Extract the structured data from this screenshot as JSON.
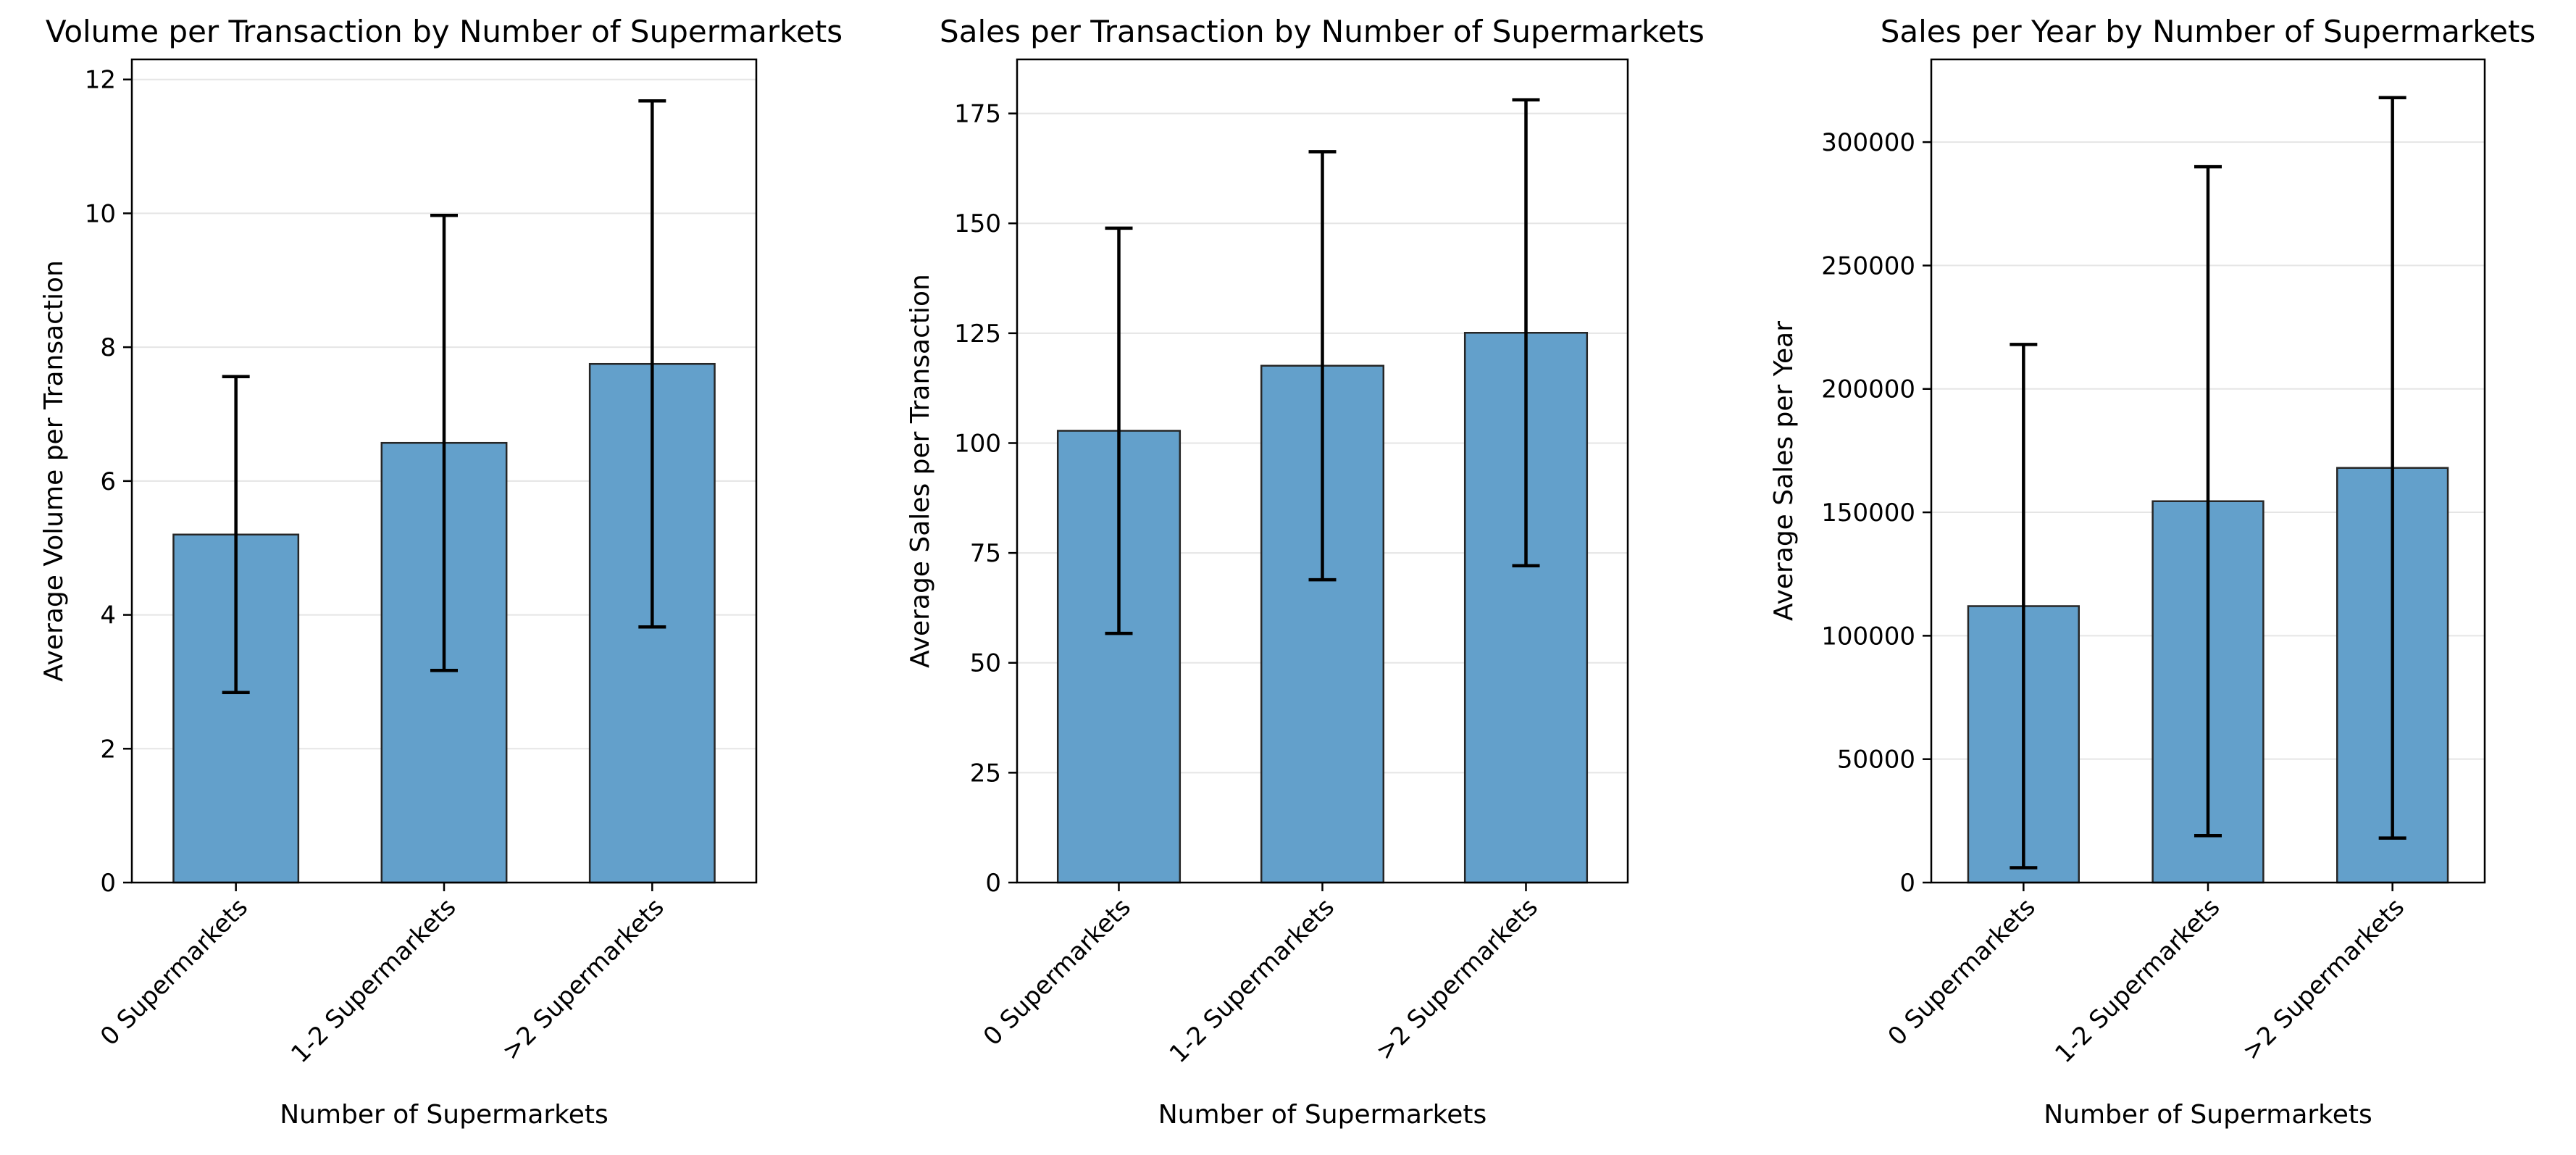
{
  "chart_data": [
    {
      "type": "bar",
      "title": "Volume per Transaction by Number of Supermarkets",
      "xlabel": "Number of Supermarkets",
      "ylabel": "Average Volume per Transaction",
      "categories": [
        "0 Supermarkets",
        "1-2 Supermarkets",
        ">2 Supermarkets"
      ],
      "values": [
        5.2,
        6.57,
        7.75
      ],
      "error": [
        2.36,
        3.4,
        3.93
      ],
      "ylim": [
        0,
        12.3
      ],
      "yticks": [
        0,
        2,
        4,
        6,
        8,
        10,
        12
      ],
      "grid": "y"
    },
    {
      "type": "bar",
      "title": "Sales per Transaction by Number of Supermarkets",
      "xlabel": "Number of Supermarkets",
      "ylabel": "Average Sales per Transaction",
      "categories": [
        "0 Supermarkets",
        "1-2 Supermarkets",
        ">2 Supermarkets"
      ],
      "values": [
        102.8,
        117.6,
        125.1
      ],
      "error": [
        46.1,
        48.7,
        53.0
      ],
      "ylim": [
        0,
        187.3
      ],
      "yticks": [
        0,
        25,
        50,
        75,
        100,
        125,
        150,
        175
      ],
      "grid": "y"
    },
    {
      "type": "bar",
      "title": "Sales per Year by Number of Supermarkets",
      "xlabel": "Number of Supermarkets",
      "ylabel": "Average Sales per Year",
      "categories": [
        "0 Supermarkets",
        "1-2 Supermarkets",
        ">2 Supermarkets"
      ],
      "values": [
        112000,
        154500,
        168000
      ],
      "error": [
        106000,
        135500,
        150000
      ],
      "ylim": [
        0,
        333500
      ],
      "yticks": [
        0,
        50000,
        100000,
        150000,
        200000,
        250000,
        300000
      ],
      "grid": "y"
    }
  ],
  "colors": {
    "bar": "#63a0cb",
    "bar_edge": "#262626",
    "error": "#000000",
    "grid": "#e5e5e5"
  }
}
